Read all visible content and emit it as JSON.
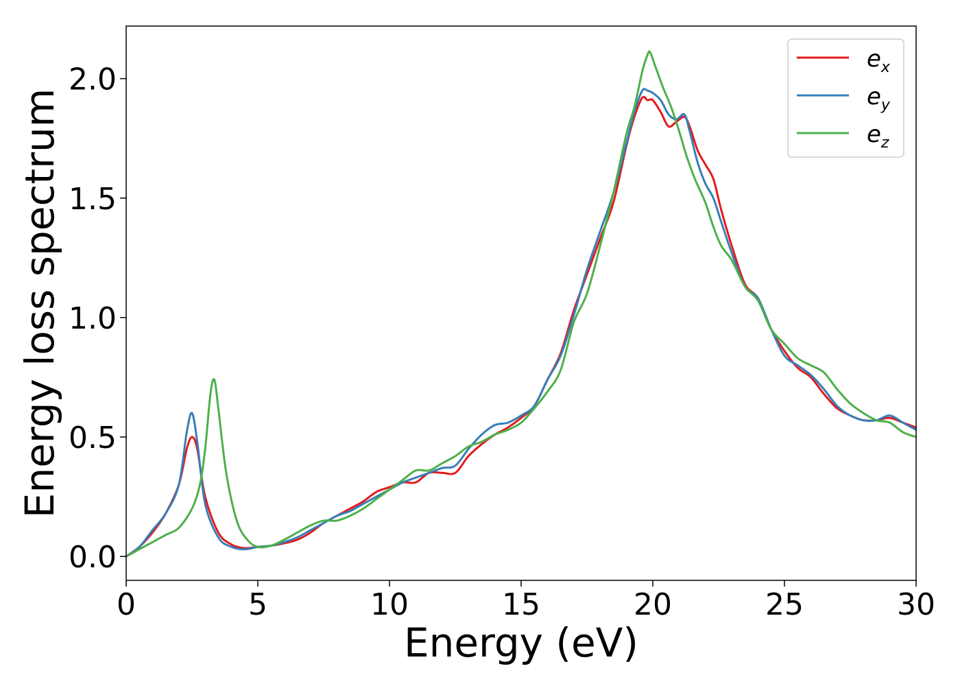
{
  "chart_data": {
    "type": "line",
    "xlabel": "Energy (eV)",
    "ylabel": "Energy loss spectrum",
    "xlim": [
      0,
      30
    ],
    "ylim": [
      -0.1,
      2.22
    ],
    "xticks": [
      0,
      5,
      10,
      15,
      20,
      25,
      30
    ],
    "xtick_labels": [
      "0",
      "5",
      "10",
      "15",
      "20",
      "25",
      "30"
    ],
    "yticks": [
      0.0,
      0.5,
      1.0,
      1.5,
      2.0
    ],
    "ytick_labels": [
      "0.0",
      "0.5",
      "1.0",
      "1.5",
      "2.0"
    ],
    "grid": false,
    "legend_position": "top-right",
    "series": [
      {
        "name": "e_x",
        "base": "e",
        "sub": "x",
        "color": "#e41a1c",
        "x": [
          0,
          0.5,
          1.0,
          1.5,
          2.0,
          2.3,
          2.5,
          2.7,
          3.0,
          3.5,
          4.0,
          4.5,
          5.0,
          5.5,
          6.0,
          6.5,
          7.0,
          7.5,
          8.0,
          8.5,
          9.0,
          9.5,
          10.0,
          10.5,
          11.0,
          11.5,
          12.0,
          12.5,
          13.0,
          13.5,
          14.0,
          14.5,
          15.0,
          15.5,
          16.0,
          16.5,
          17.0,
          17.5,
          18.0,
          18.5,
          19.0,
          19.3,
          19.6,
          19.8,
          20.0,
          20.3,
          20.6,
          20.9,
          21.2,
          21.4,
          21.7,
          22.0,
          22.3,
          22.6,
          23.0,
          23.5,
          24.0,
          24.5,
          25.0,
          25.5,
          26.0,
          26.5,
          27.0,
          27.5,
          28.0,
          28.5,
          29.0,
          29.5,
          30.0
        ],
        "y": [
          0.0,
          0.04,
          0.1,
          0.18,
          0.3,
          0.45,
          0.5,
          0.45,
          0.25,
          0.1,
          0.05,
          0.035,
          0.04,
          0.045,
          0.055,
          0.07,
          0.1,
          0.14,
          0.17,
          0.2,
          0.23,
          0.27,
          0.29,
          0.31,
          0.31,
          0.35,
          0.35,
          0.35,
          0.42,
          0.47,
          0.51,
          0.54,
          0.58,
          0.63,
          0.74,
          0.85,
          1.03,
          1.18,
          1.33,
          1.48,
          1.72,
          1.84,
          1.92,
          1.91,
          1.91,
          1.86,
          1.8,
          1.82,
          1.84,
          1.8,
          1.7,
          1.64,
          1.58,
          1.45,
          1.3,
          1.14,
          1.08,
          0.95,
          0.86,
          0.79,
          0.75,
          0.68,
          0.62,
          0.59,
          0.57,
          0.57,
          0.58,
          0.56,
          0.54
        ]
      },
      {
        "name": "e_y",
        "base": "e",
        "sub": "y",
        "color": "#377eb8",
        "x": [
          0,
          0.5,
          1.0,
          1.5,
          2.0,
          2.3,
          2.5,
          2.7,
          3.0,
          3.5,
          4.0,
          4.5,
          5.0,
          5.5,
          6.0,
          6.5,
          7.0,
          7.5,
          8.0,
          8.5,
          9.0,
          9.5,
          10.0,
          10.5,
          11.0,
          11.5,
          12.0,
          12.5,
          13.0,
          13.5,
          14.0,
          14.5,
          15.0,
          15.5,
          16.0,
          16.5,
          17.0,
          17.5,
          18.0,
          18.5,
          19.0,
          19.3,
          19.6,
          19.8,
          20.0,
          20.3,
          20.6,
          20.9,
          21.2,
          21.4,
          21.7,
          22.0,
          22.3,
          22.6,
          23.0,
          23.5,
          24.0,
          24.5,
          25.0,
          25.5,
          26.0,
          26.5,
          27.0,
          27.5,
          28.0,
          28.5,
          29.0,
          29.5,
          30.0
        ],
        "y": [
          0.0,
          0.04,
          0.11,
          0.18,
          0.3,
          0.52,
          0.6,
          0.48,
          0.22,
          0.08,
          0.04,
          0.03,
          0.04,
          0.045,
          0.06,
          0.08,
          0.11,
          0.14,
          0.17,
          0.19,
          0.22,
          0.25,
          0.28,
          0.31,
          0.33,
          0.35,
          0.37,
          0.38,
          0.45,
          0.51,
          0.55,
          0.56,
          0.59,
          0.63,
          0.74,
          0.84,
          1.01,
          1.2,
          1.36,
          1.52,
          1.73,
          1.86,
          1.95,
          1.95,
          1.94,
          1.91,
          1.85,
          1.83,
          1.85,
          1.78,
          1.65,
          1.56,
          1.5,
          1.4,
          1.27,
          1.13,
          1.08,
          0.95,
          0.84,
          0.8,
          0.76,
          0.7,
          0.63,
          0.59,
          0.57,
          0.57,
          0.59,
          0.56,
          0.53
        ]
      },
      {
        "name": "e_z",
        "base": "e",
        "sub": "z",
        "color": "#4daf4a",
        "x": [
          0,
          0.5,
          1.0,
          1.5,
          2.0,
          2.5,
          2.8,
          3.0,
          3.2,
          3.35,
          3.5,
          3.8,
          4.2,
          4.6,
          5.0,
          5.5,
          6.0,
          6.5,
          7.0,
          7.5,
          8.0,
          8.5,
          9.0,
          9.5,
          10.0,
          10.5,
          11.0,
          11.5,
          12.0,
          12.5,
          13.0,
          13.5,
          14.0,
          14.5,
          15.0,
          15.5,
          16.0,
          16.5,
          17.0,
          17.5,
          18.0,
          18.5,
          19.0,
          19.3,
          19.6,
          19.8,
          19.9,
          20.1,
          20.4,
          20.7,
          21.0,
          21.3,
          21.6,
          22.0,
          22.3,
          22.6,
          23.0,
          23.5,
          24.0,
          24.5,
          25.0,
          25.5,
          26.0,
          26.5,
          27.0,
          27.5,
          28.0,
          28.5,
          29.0,
          29.5,
          30.0
        ],
        "y": [
          0.0,
          0.03,
          0.06,
          0.09,
          0.12,
          0.2,
          0.3,
          0.45,
          0.68,
          0.74,
          0.62,
          0.35,
          0.15,
          0.07,
          0.04,
          0.045,
          0.07,
          0.1,
          0.13,
          0.15,
          0.15,
          0.17,
          0.2,
          0.24,
          0.28,
          0.32,
          0.36,
          0.36,
          0.39,
          0.42,
          0.46,
          0.48,
          0.51,
          0.53,
          0.56,
          0.62,
          0.69,
          0.78,
          0.98,
          1.1,
          1.3,
          1.52,
          1.77,
          1.88,
          2.03,
          2.1,
          2.11,
          2.05,
          1.96,
          1.88,
          1.78,
          1.67,
          1.58,
          1.48,
          1.38,
          1.3,
          1.24,
          1.13,
          1.07,
          0.95,
          0.89,
          0.83,
          0.8,
          0.77,
          0.7,
          0.64,
          0.6,
          0.57,
          0.56,
          0.52,
          0.5
        ]
      }
    ]
  }
}
